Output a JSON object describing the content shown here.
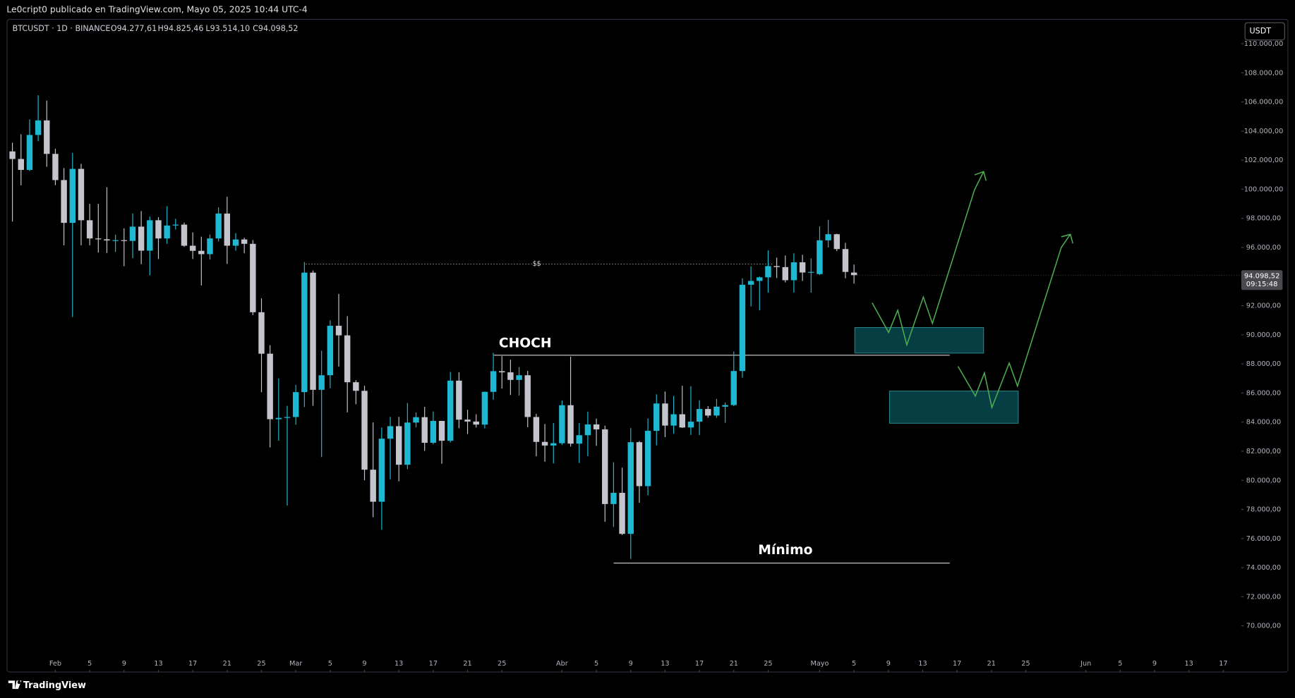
{
  "header": {
    "text": "Le0cript0 publicado en TradingView.com, Mayo 05, 2025 10:44 UTC-4"
  },
  "chart_data": {
    "type": "candlestick",
    "symbol": "BTCUSDT · 1D · BINANCE",
    "ohlc_text": [
      "O94.277,61",
      "H94.825,46",
      "L93.514,10",
      "C94.098,52"
    ],
    "currency": "USDT",
    "last_price_label": "94.098,52",
    "countdown": "09:15:48",
    "annotations": {
      "liquidity": "$$",
      "choch": "CHOCH",
      "low": "Mínimo"
    },
    "up_color": "#1fb8d2",
    "down_color": "#c4c4cc",
    "x": [
      "01-27",
      "01-28",
      "01-29",
      "01-30",
      "01-31",
      "02-01",
      "02-02",
      "02-03",
      "02-04",
      "02-05",
      "02-06",
      "02-07",
      "02-08",
      "02-09",
      "02-10",
      "02-11",
      "02-12",
      "02-13",
      "02-14",
      "02-15",
      "02-16",
      "02-17",
      "02-18",
      "02-19",
      "02-20",
      "02-21",
      "02-22",
      "02-23",
      "02-24",
      "02-25",
      "02-26",
      "02-27",
      "02-28",
      "03-01",
      "03-02",
      "03-03",
      "03-04",
      "03-05",
      "03-06",
      "03-07",
      "03-08",
      "03-09",
      "03-10",
      "03-11",
      "03-12",
      "03-13",
      "03-14",
      "03-15",
      "03-16",
      "03-17",
      "03-18",
      "03-19",
      "03-20",
      "03-21",
      "03-22",
      "03-23",
      "03-24",
      "03-25",
      "03-26",
      "03-27",
      "03-28",
      "03-29",
      "03-30",
      "03-31",
      "04-01",
      "04-02",
      "04-03",
      "04-04",
      "04-05",
      "04-06",
      "04-07",
      "04-08",
      "04-09",
      "04-10",
      "04-11",
      "04-12",
      "04-13",
      "04-14",
      "04-15",
      "04-16",
      "04-17",
      "04-18",
      "04-19",
      "04-20",
      "04-21",
      "04-22",
      "04-23",
      "04-24",
      "04-25",
      "04-26",
      "04-27",
      "04-28",
      "04-29",
      "04-30",
      "05-01",
      "05-02",
      "05-03",
      "05-04",
      "05-05"
    ],
    "open": [
      102600,
      102080,
      101330,
      103730,
      104730,
      102430,
      100630,
      97690,
      101400,
      97870,
      96620,
      96560,
      96480,
      96500,
      96450,
      97430,
      95780,
      97870,
      96620,
      97510,
      97570,
      96120,
      95770,
      95540,
      96620,
      98330,
      96120,
      96550,
      96250,
      91550,
      88700,
      84200,
      84290,
      84350,
      86060,
      94270,
      86220,
      87220,
      90620,
      89960,
      86740,
      86150,
      80730,
      78530,
      82860,
      83720,
      81070,
      83970,
      84340,
      82580,
      84080,
      82720,
      86850,
      84170,
      84040,
      83830,
      86080,
      87500,
      87420,
      86900,
      87220,
      84350,
      82640,
      82390,
      82550,
      85160,
      82520,
      83100,
      83840,
      83500,
      78370,
      79140,
      76320,
      82620,
      79600,
      83400,
      85280,
      83760,
      84540,
      83630,
      84030,
      84900,
      84450,
      85060,
      85170,
      87510,
      93440,
      93700,
      93950,
      94720,
      94650,
      93750,
      94980,
      94280,
      94170,
      96490,
      96910,
      95890,
      94277.61
    ],
    "high": [
      103200,
      103780,
      104800,
      106460,
      106090,
      102780,
      101460,
      102500,
      101750,
      99000,
      99000,
      100140,
      96880,
      97320,
      98340,
      98500,
      98120,
      98080,
      98830,
      97970,
      97710,
      97040,
      96740,
      96890,
      98760,
      99480,
      96980,
      96670,
      96510,
      92500,
      89290,
      87000,
      85120,
      86560,
      95000,
      94420,
      88910,
      91000,
      92810,
      91280,
      86880,
      86500,
      83980,
      83620,
      84360,
      84360,
      85310,
      84660,
      85050,
      84730,
      84080,
      87450,
      87430,
      84850,
      84540,
      86100,
      88760,
      88540,
      88290,
      87780,
      87520,
      84570,
      83870,
      83940,
      85490,
      88500,
      83930,
      84720,
      84240,
      83760,
      81240,
      80870,
      83590,
      82700,
      84250,
      85910,
      86100,
      85800,
      86500,
      86470,
      85500,
      85100,
      85600,
      85350,
      88850,
      93880,
      94700,
      94000,
      95800,
      95300,
      95450,
      95600,
      95500,
      95250,
      97450,
      97900,
      96950,
      96320,
      94825.46
    ],
    "low": [
      97780,
      100270,
      101250,
      103300,
      101540,
      100280,
      96150,
      91230,
      96150,
      96150,
      95650,
      95620,
      95690,
      94710,
      95260,
      94850,
      94090,
      95210,
      96250,
      97230,
      96040,
      95210,
      93390,
      95170,
      96410,
      94870,
      95780,
      95600,
      91350,
      86050,
      82260,
      82720,
      78260,
      83820,
      85040,
      85120,
      81600,
      86330,
      87820,
      84670,
      85230,
      80000,
      77460,
      76600,
      80070,
      79930,
      80770,
      83640,
      82020,
      82470,
      81140,
      82600,
      83580,
      83180,
      83630,
      83570,
      85540,
      86300,
      85860,
      85820,
      83650,
      81650,
      81280,
      81160,
      82430,
      82320,
      81190,
      81660,
      82370,
      77150,
      76800,
      76240,
      74600,
      78460,
      78970,
      82400,
      82970,
      83200,
      83600,
      83120,
      83110,
      84300,
      84300,
      83950,
      85100,
      87050,
      91940,
      91680,
      92900,
      93900,
      93600,
      92900,
      93700,
      92900,
      94100,
      96000,
      95750,
      93880,
      93514.1
    ],
    "close": [
      102080,
      101330,
      103730,
      104730,
      102430,
      100630,
      97690,
      101400,
      97870,
      96620,
      96560,
      96480,
      96500,
      96450,
      97430,
      95780,
      97870,
      96620,
      97510,
      97570,
      96120,
      95770,
      95540,
      96620,
      98330,
      96120,
      96550,
      96250,
      91550,
      88700,
      84200,
      84290,
      84350,
      86060,
      94270,
      86220,
      87220,
      90620,
      89960,
      86740,
      86150,
      80730,
      78530,
      82860,
      83720,
      81070,
      83970,
      84340,
      82580,
      84080,
      82720,
      86850,
      84170,
      84040,
      83830,
      86080,
      87500,
      87420,
      86900,
      87220,
      84350,
      82640,
      82390,
      82550,
      85160,
      82520,
      83100,
      83840,
      83500,
      78370,
      79140,
      76320,
      82620,
      79600,
      83400,
      85280,
      83760,
      84540,
      83630,
      84030,
      84900,
      84450,
      85060,
      85170,
      87510,
      93440,
      93700,
      93950,
      94720,
      94650,
      93750,
      94980,
      94280,
      94320,
      96490,
      96910,
      95890,
      94320,
      94098.52
    ],
    "xlim": [
      "01-26",
      "06-19"
    ],
    "xticks": [
      {
        "value": "02-01",
        "label": "Feb"
      },
      {
        "value": "02-05",
        "label": "5"
      },
      {
        "value": "02-09",
        "label": "9"
      },
      {
        "value": "02-13",
        "label": "13"
      },
      {
        "value": "02-17",
        "label": "17"
      },
      {
        "value": "02-21",
        "label": "21"
      },
      {
        "value": "02-25",
        "label": "25"
      },
      {
        "value": "03-01",
        "label": "Mar"
      },
      {
        "value": "03-05",
        "label": "5"
      },
      {
        "value": "03-09",
        "label": "9"
      },
      {
        "value": "03-13",
        "label": "13"
      },
      {
        "value": "03-17",
        "label": "17"
      },
      {
        "value": "03-21",
        "label": "21"
      },
      {
        "value": "03-25",
        "label": "25"
      },
      {
        "value": "04-01",
        "label": "Abr"
      },
      {
        "value": "04-05",
        "label": "5"
      },
      {
        "value": "04-09",
        "label": "9"
      },
      {
        "value": "04-13",
        "label": "13"
      },
      {
        "value": "04-17",
        "label": "17"
      },
      {
        "value": "04-21",
        "label": "21"
      },
      {
        "value": "04-25",
        "label": "25"
      },
      {
        "value": "05-01",
        "label": "Mayo"
      },
      {
        "value": "05-05",
        "label": "5"
      },
      {
        "value": "05-09",
        "label": "9"
      },
      {
        "value": "05-13",
        "label": "13"
      },
      {
        "value": "05-17",
        "label": "17"
      },
      {
        "value": "05-21",
        "label": "21"
      },
      {
        "value": "05-25",
        "label": "25"
      },
      {
        "value": "06-01",
        "label": "Jun"
      },
      {
        "value": "06-05",
        "label": "5"
      },
      {
        "value": "06-09",
        "label": "9"
      },
      {
        "value": "06-13",
        "label": "13"
      },
      {
        "value": "06-17",
        "label": "17"
      }
    ],
    "ylim": [
      66800,
      111700
    ],
    "yticks": [
      {
        "value": 70000,
        "label": "70.000,00"
      },
      {
        "value": 72000,
        "label": "72.000,00"
      },
      {
        "value": 74000,
        "label": "74.000,00"
      },
      {
        "value": 76000,
        "label": "76.000,00"
      },
      {
        "value": 78000,
        "label": "78.000,00"
      },
      {
        "value": 80000,
        "label": "80.000,00"
      },
      {
        "value": 82000,
        "label": "82.000,00"
      },
      {
        "value": 84000,
        "label": "84.000,00"
      },
      {
        "value": 86000,
        "label": "86.000,00"
      },
      {
        "value": 88000,
        "label": "88.000,00"
      },
      {
        "value": 90000,
        "label": "90.000,00"
      },
      {
        "value": 92000,
        "label": "92.000,00"
      },
      {
        "value": 94000,
        "label": "94.000,00"
      },
      {
        "value": 96000,
        "label": "96.000,00"
      },
      {
        "value": 98000,
        "label": "98.000,00"
      },
      {
        "value": 100000,
        "label": "100.000,00"
      },
      {
        "value": 102000,
        "label": "102.000,00"
      },
      {
        "value": 104000,
        "label": "104.000,00"
      },
      {
        "value": 106000,
        "label": "106.000,00"
      },
      {
        "value": 108000,
        "label": "108.000,00"
      },
      {
        "value": 110000,
        "label": "110.000,00"
      }
    ]
  },
  "footer": {
    "brand": "TradingView"
  }
}
